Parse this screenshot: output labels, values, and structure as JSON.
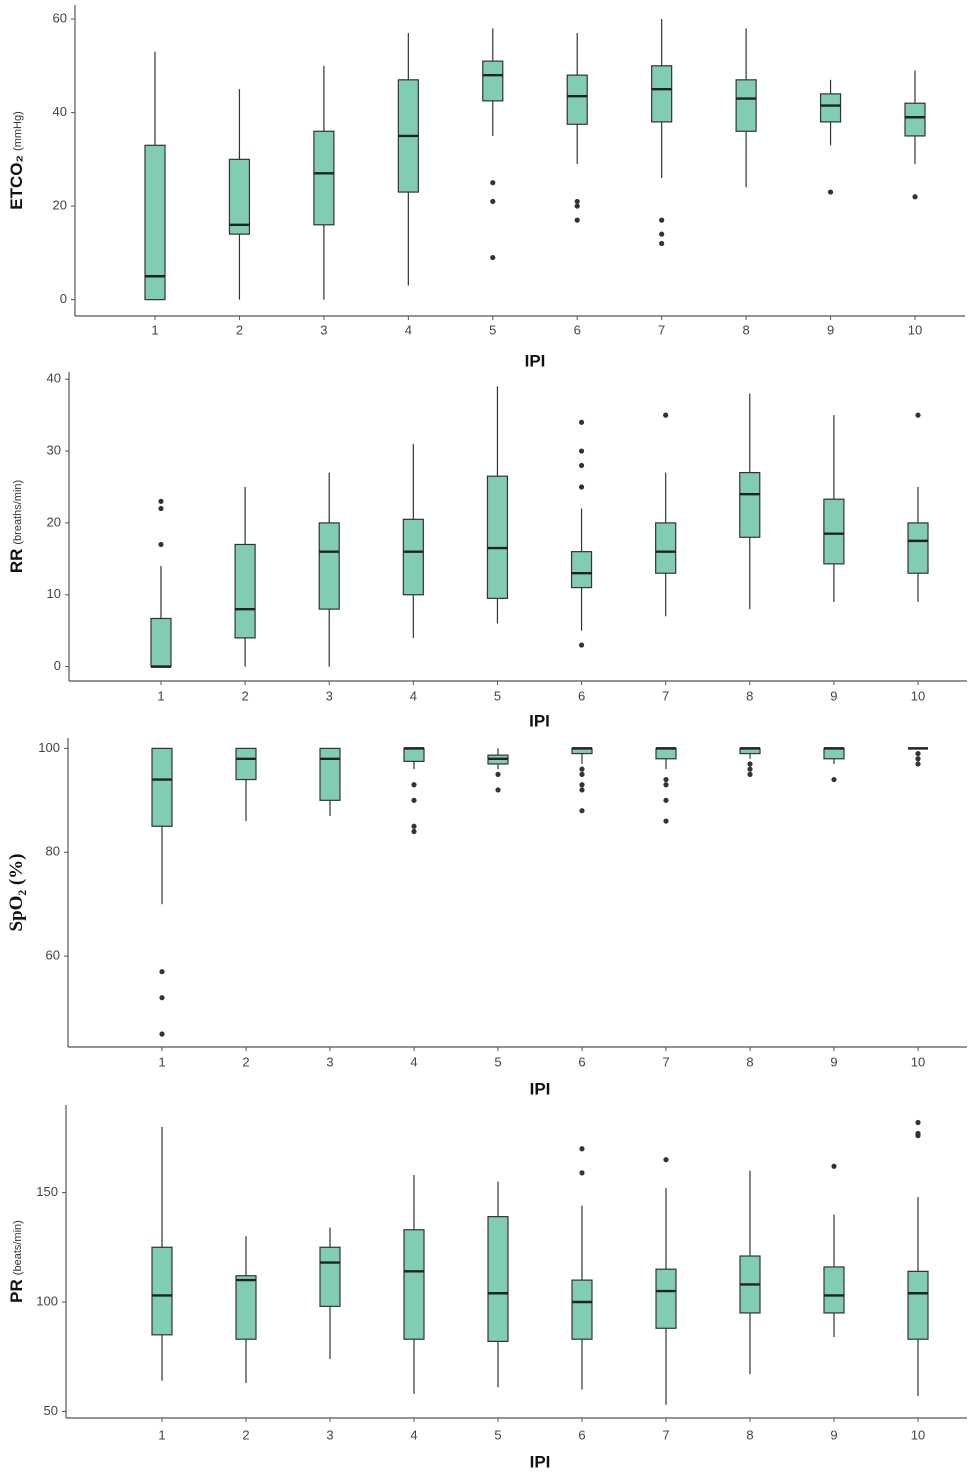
{
  "chart_data": [
    {
      "type": "box",
      "ylabel": "ETCO₂",
      "ylabel_unit": "(mmHg)",
      "xlabel": "IPI",
      "color": "#80cdb4",
      "categories": [
        "1",
        "2",
        "3",
        "4",
        "5",
        "6",
        "7",
        "8",
        "9",
        "10"
      ],
      "ylim": [
        -3.5,
        63
      ],
      "yticks": [
        0,
        20,
        40,
        60
      ],
      "boxes": [
        {
          "min": 0,
          "q1": 0,
          "median": 5,
          "q3": 33,
          "max": 53,
          "outliers": []
        },
        {
          "min": 0,
          "q1": 14,
          "median": 16,
          "q3": 30,
          "max": 45,
          "outliers": []
        },
        {
          "min": 0,
          "q1": 16,
          "median": 27,
          "q3": 36,
          "max": 50,
          "outliers": []
        },
        {
          "min": 3,
          "q1": 23,
          "median": 35,
          "q3": 47,
          "max": 57,
          "outliers": []
        },
        {
          "min": 35,
          "q1": 42.5,
          "median": 48,
          "q3": 51,
          "max": 58,
          "outliers": [
            25,
            21,
            9
          ]
        },
        {
          "min": 29,
          "q1": 37.5,
          "median": 43.5,
          "q3": 48,
          "max": 57,
          "outliers": [
            21,
            20,
            17
          ]
        },
        {
          "min": 26,
          "q1": 38,
          "median": 45,
          "q3": 50,
          "max": 60,
          "outliers": [
            17,
            14,
            12
          ]
        },
        {
          "min": 24,
          "q1": 36,
          "median": 43,
          "q3": 47,
          "max": 58,
          "outliers": []
        },
        {
          "min": 33,
          "q1": 38,
          "median": 41.5,
          "q3": 44,
          "max": 47,
          "outliers": [
            23
          ]
        },
        {
          "min": 29,
          "q1": 35,
          "median": 39,
          "q3": 42,
          "max": 49,
          "outliers": [
            22
          ]
        }
      ]
    },
    {
      "type": "box",
      "ylabel": "RR",
      "ylabel_unit": "(breaths/min)",
      "xlabel": "IPI",
      "color": "#80cdb4",
      "categories": [
        "1",
        "2",
        "3",
        "4",
        "5",
        "6",
        "7",
        "8",
        "9",
        "10"
      ],
      "ylim": [
        -2,
        41
      ],
      "yticks": [
        0,
        10,
        20,
        30,
        40
      ],
      "boxes": [
        {
          "min": 0,
          "q1": 0,
          "median": 0,
          "q3": 6.7,
          "max": 14,
          "outliers": [
            23,
            22,
            17
          ]
        },
        {
          "min": 0,
          "q1": 4,
          "median": 8,
          "q3": 17,
          "max": 25,
          "outliers": []
        },
        {
          "min": 0,
          "q1": 8,
          "median": 16,
          "q3": 20,
          "max": 27,
          "outliers": []
        },
        {
          "min": 4,
          "q1": 10,
          "median": 16,
          "q3": 20.5,
          "max": 31,
          "outliers": []
        },
        {
          "min": 6,
          "q1": 9.5,
          "median": 16.5,
          "q3": 26.5,
          "max": 39,
          "outliers": []
        },
        {
          "min": 5,
          "q1": 11,
          "median": 13,
          "q3": 16,
          "max": 22,
          "outliers": [
            25,
            28,
            30,
            34,
            3
          ]
        },
        {
          "min": 7,
          "q1": 13,
          "median": 16,
          "q3": 20,
          "max": 27,
          "outliers": [
            35
          ]
        },
        {
          "min": 8,
          "q1": 18,
          "median": 24,
          "q3": 27,
          "max": 38,
          "outliers": []
        },
        {
          "min": 9,
          "q1": 14.3,
          "median": 18.5,
          "q3": 23.3,
          "max": 35,
          "outliers": []
        },
        {
          "min": 9,
          "q1": 13,
          "median": 17.5,
          "q3": 20,
          "max": 25,
          "outliers": [
            35
          ]
        }
      ]
    },
    {
      "type": "box",
      "ylabel": "SpO₂ (%)",
      "xlabel": "IPI",
      "color": "#80cdb4",
      "categories": [
        "1",
        "2",
        "3",
        "4",
        "5",
        "6",
        "7",
        "8",
        "9",
        "10"
      ],
      "ylim": [
        42.5,
        102
      ],
      "yticks": [
        60,
        80,
        100
      ],
      "boxes": [
        {
          "min": 70,
          "q1": 85,
          "median": 94,
          "q3": 100,
          "max": 100,
          "outliers": [
            57,
            52,
            45
          ]
        },
        {
          "min": 86,
          "q1": 94,
          "median": 98,
          "q3": 100,
          "max": 100,
          "outliers": []
        },
        {
          "min": 87,
          "q1": 90,
          "median": 98,
          "q3": 100,
          "max": 100,
          "outliers": []
        },
        {
          "min": 96,
          "q1": 97.5,
          "median": 100,
          "q3": 100,
          "max": 100,
          "outliers": [
            93,
            90,
            85,
            84
          ]
        },
        {
          "min": 96,
          "q1": 97,
          "median": 98,
          "q3": 98.7,
          "max": 100,
          "outliers": [
            95,
            92
          ]
        },
        {
          "min": 97,
          "q1": 99,
          "median": 100,
          "q3": 100,
          "max": 100,
          "outliers": [
            96,
            95,
            93,
            92,
            88
          ]
        },
        {
          "min": 96,
          "q1": 98,
          "median": 100,
          "q3": 100,
          "max": 100,
          "outliers": [
            94,
            93,
            90,
            86
          ]
        },
        {
          "min": 98,
          "q1": 99,
          "median": 100,
          "q3": 100,
          "max": 100,
          "outliers": [
            97,
            96,
            95
          ]
        },
        {
          "min": 97,
          "q1": 98,
          "median": 100,
          "q3": 100,
          "max": 100,
          "outliers": [
            94
          ]
        },
        {
          "min": 100,
          "q1": 100,
          "median": 100,
          "q3": 100,
          "max": 100,
          "outliers": [
            99,
            98,
            97
          ]
        }
      ]
    },
    {
      "type": "box",
      "ylabel": "PR",
      "ylabel_unit": "(beats/min)",
      "xlabel": "IPI",
      "color": "#80cdb4",
      "categories": [
        "1",
        "2",
        "3",
        "4",
        "5",
        "6",
        "7",
        "8",
        "9",
        "10"
      ],
      "ylim": [
        47,
        190
      ],
      "yticks": [
        50,
        100,
        150
      ],
      "boxes": [
        {
          "min": 64,
          "q1": 85,
          "median": 103,
          "q3": 125,
          "max": 180,
          "outliers": []
        },
        {
          "min": 63,
          "q1": 83,
          "median": 110,
          "q3": 112,
          "max": 130,
          "outliers": []
        },
        {
          "min": 74,
          "q1": 98,
          "median": 118,
          "q3": 125,
          "max": 134,
          "outliers": []
        },
        {
          "min": 58,
          "q1": 83,
          "median": 114,
          "q3": 133,
          "max": 158,
          "outliers": []
        },
        {
          "min": 61,
          "q1": 82,
          "median": 104,
          "q3": 139,
          "max": 155,
          "outliers": []
        },
        {
          "min": 60,
          "q1": 83,
          "median": 100,
          "q3": 110,
          "max": 144,
          "outliers": [
            159,
            170
          ]
        },
        {
          "min": 53,
          "q1": 88,
          "median": 105,
          "q3": 115,
          "max": 152,
          "outliers": [
            165
          ]
        },
        {
          "min": 67,
          "q1": 95,
          "median": 108,
          "q3": 121,
          "max": 160,
          "outliers": []
        },
        {
          "min": 84,
          "q1": 95,
          "median": 103,
          "q3": 116,
          "max": 140,
          "outliers": [
            162
          ]
        },
        {
          "min": 57,
          "q1": 83,
          "median": 104,
          "q3": 114,
          "max": 148,
          "outliers": [
            176,
            177,
            182
          ]
        }
      ]
    }
  ]
}
